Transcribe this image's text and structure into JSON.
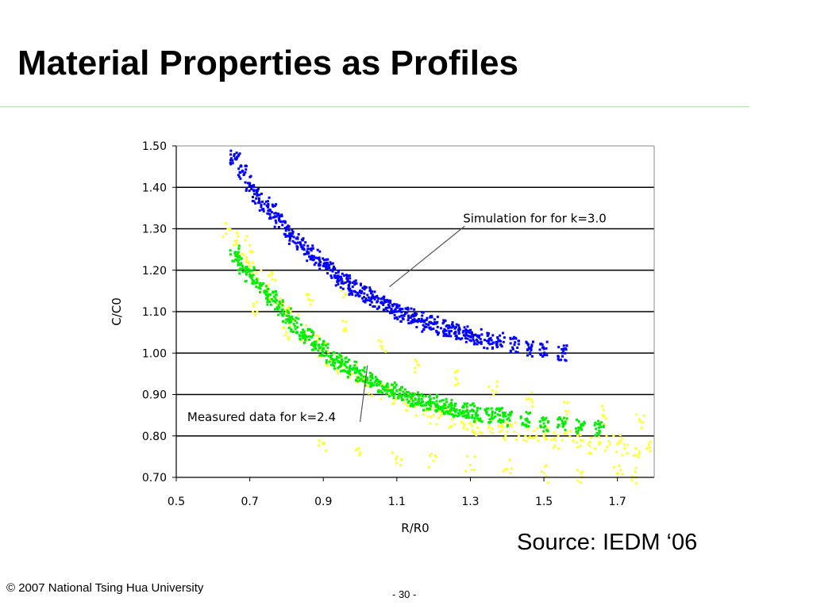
{
  "slide": {
    "title": "Material Properties as Profiles",
    "source": "Source: IEDM ‘06",
    "copyright": "© 2007 National Tsing Hua University",
    "page": "- 30 -"
  },
  "chart_data": {
    "type": "scatter",
    "title": "",
    "xlabel": "R/R0",
    "ylabel": "C/C0",
    "xlim": [
      0.5,
      1.8
    ],
    "ylim": [
      0.7,
      1.5
    ],
    "x_ticks": [
      "0.5",
      "0.7",
      "0.9",
      "1.1",
      "1.3",
      "1.5",
      "1.7"
    ],
    "y_ticks": [
      "1.50",
      "1.40",
      "1.30",
      "1.20",
      "1.10",
      "1.00",
      "0.90",
      "0.80",
      "0.70"
    ],
    "grid": "horizontal",
    "series": [
      {
        "color": "#ffff33",
        "x": [
          0.64,
          0.66,
          0.68,
          0.7,
          0.72,
          0.75,
          0.78,
          0.8,
          0.82,
          0.85,
          0.88,
          0.9,
          0.92,
          0.95,
          0.98,
          1.0,
          1.02,
          1.05,
          1.08,
          1.1,
          1.12,
          1.15,
          1.18,
          1.2,
          1.22,
          1.25,
          1.28,
          1.3,
          1.32,
          1.35,
          1.38,
          1.4,
          1.42,
          1.45,
          1.48,
          1.5,
          1.52,
          1.55,
          1.58,
          1.6,
          1.62,
          1.65,
          1.68,
          1.7,
          1.72,
          1.75,
          1.78,
          0.7,
          0.76,
          0.86,
          0.96,
          1.06,
          1.16,
          1.26,
          1.36,
          1.46,
          1.56,
          1.66,
          1.76,
          0.9,
          1.0,
          1.1,
          1.2,
          1.3,
          1.4,
          1.5,
          1.6,
          1.7,
          1.75,
          0.95,
          0.72,
          0.8
        ],
        "y": [
          1.3,
          1.27,
          1.24,
          1.21,
          1.18,
          1.15,
          1.12,
          1.1,
          1.08,
          1.05,
          1.03,
          1.01,
          0.99,
          0.97,
          0.95,
          0.94,
          0.92,
          0.91,
          0.9,
          0.89,
          0.88,
          0.87,
          0.86,
          0.85,
          0.85,
          0.84,
          0.83,
          0.83,
          0.82,
          0.82,
          0.81,
          0.81,
          0.81,
          0.8,
          0.8,
          0.8,
          0.79,
          0.79,
          0.79,
          0.79,
          0.78,
          0.78,
          0.78,
          0.78,
          0.77,
          0.77,
          0.77,
          1.26,
          1.19,
          1.13,
          1.06,
          1.01,
          0.97,
          0.94,
          0.91,
          0.89,
          0.86,
          0.85,
          0.84,
          0.78,
          0.76,
          0.75,
          0.74,
          0.73,
          0.72,
          0.71,
          0.71,
          0.71,
          0.7,
          1.15,
          1.1,
          1.05
        ]
      },
      {
        "color": "#00ee00",
        "x": [
          0.66,
          0.68,
          0.7,
          0.72,
          0.74,
          0.76,
          0.78,
          0.8,
          0.82,
          0.84,
          0.86,
          0.88,
          0.9,
          0.92,
          0.94,
          0.96,
          0.98,
          1.0,
          1.02,
          1.04,
          1.06,
          1.08,
          1.1,
          1.12,
          1.14,
          1.16,
          1.18,
          1.2,
          1.22,
          1.24,
          1.26,
          1.28,
          1.3,
          1.32,
          1.35,
          1.38,
          1.4,
          1.45,
          1.5,
          1.55,
          1.6,
          1.65
        ],
        "y": [
          1.24,
          1.21,
          1.19,
          1.17,
          1.15,
          1.13,
          1.11,
          1.09,
          1.07,
          1.05,
          1.04,
          1.02,
          1.01,
          0.99,
          0.98,
          0.97,
          0.96,
          0.95,
          0.94,
          0.93,
          0.92,
          0.91,
          0.91,
          0.9,
          0.89,
          0.89,
          0.88,
          0.88,
          0.87,
          0.87,
          0.86,
          0.86,
          0.86,
          0.85,
          0.85,
          0.85,
          0.84,
          0.84,
          0.83,
          0.83,
          0.82,
          0.82
        ]
      },
      {
        "color": "#0000ff",
        "x": [
          0.66,
          0.68,
          0.7,
          0.72,
          0.74,
          0.76,
          0.78,
          0.8,
          0.82,
          0.84,
          0.86,
          0.88,
          0.9,
          0.92,
          0.94,
          0.96,
          0.98,
          1.0,
          1.02,
          1.04,
          1.06,
          1.08,
          1.1,
          1.12,
          1.14,
          1.16,
          1.18,
          1.2,
          1.22,
          1.24,
          1.26,
          1.28,
          1.3,
          1.32,
          1.35,
          1.38,
          1.42,
          1.46,
          1.5,
          1.55
        ],
        "y": [
          1.47,
          1.44,
          1.41,
          1.38,
          1.36,
          1.34,
          1.32,
          1.3,
          1.28,
          1.26,
          1.24,
          1.23,
          1.21,
          1.2,
          1.18,
          1.17,
          1.16,
          1.15,
          1.14,
          1.13,
          1.12,
          1.11,
          1.1,
          1.09,
          1.09,
          1.08,
          1.07,
          1.07,
          1.06,
          1.06,
          1.05,
          1.05,
          1.04,
          1.04,
          1.03,
          1.03,
          1.02,
          1.01,
          1.01,
          1.0
        ]
      }
    ],
    "annotations": [
      {
        "text": "Simulation for for k=3.0",
        "x": 1.28,
        "y": 1.31,
        "arrow_to": [
          1.08,
          1.16
        ]
      },
      {
        "text": "Measured data for k=2.4",
        "x": 0.53,
        "y": 0.83,
        "arrow_to": [
          1.02,
          0.97
        ]
      }
    ]
  }
}
